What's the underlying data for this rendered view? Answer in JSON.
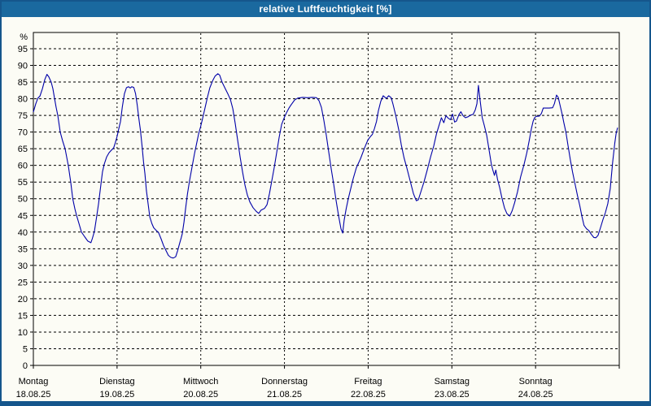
{
  "window": {
    "title": "relative Luftfeuchtigkeit [%]"
  },
  "colors": {
    "titlebar_bg": "#1a699f",
    "window_border": "#15568c",
    "content_bg": "#fcfcf5",
    "axis": "#000000",
    "line": "#0000a8"
  },
  "chart_data": {
    "type": "line",
    "title": "relative Luftfeuchtigkeit [%]",
    "ylabel": "%",
    "ylim": [
      0,
      100
    ],
    "grid": "dashed",
    "legend_position": "none",
    "y_axis": {
      "unit_label": "%",
      "yticks": [
        0,
        5,
        10,
        15,
        20,
        25,
        30,
        35,
        40,
        45,
        50,
        55,
        60,
        65,
        70,
        75,
        80,
        85,
        90,
        95
      ]
    },
    "x_axis": {
      "hours_total": 168,
      "day_boundary_hours": [
        0,
        24,
        48,
        72,
        96,
        120,
        144,
        168
      ],
      "days": [
        {
          "name": "Montag",
          "date": "18.08.25"
        },
        {
          "name": "Dienstag",
          "date": "19.08.25"
        },
        {
          "name": "Mittwoch",
          "date": "20.08.25"
        },
        {
          "name": "Donnerstag",
          "date": "21.08.25"
        },
        {
          "name": "Freitag",
          "date": "22.08.25"
        },
        {
          "name": "Samstag",
          "date": "23.08.25"
        },
        {
          "name": "Sonntag",
          "date": "24.08.25"
        }
      ]
    },
    "series": [
      {
        "name": "relative Luftfeuchtigkeit",
        "color": "#0000a8",
        "points": [
          [
            0,
            76
          ],
          [
            0.7,
            78.5
          ],
          [
            1.3,
            80.2
          ],
          [
            1.9,
            80.8
          ],
          [
            2.6,
            83
          ],
          [
            3.3,
            85.8
          ],
          [
            3.9,
            87.3
          ],
          [
            4.4,
            86.6
          ],
          [
            5.1,
            85
          ],
          [
            5.6,
            83
          ],
          [
            6.1,
            80
          ],
          [
            6.5,
            77.5
          ],
          [
            7,
            75
          ],
          [
            7.7,
            70
          ],
          [
            8.4,
            67.3
          ],
          [
            9.1,
            65
          ],
          [
            10,
            60
          ],
          [
            10.7,
            55
          ],
          [
            11.3,
            50
          ],
          [
            11.9,
            47
          ],
          [
            12.4,
            45
          ],
          [
            13.1,
            42.5
          ],
          [
            13.8,
            40
          ],
          [
            14.7,
            38.6
          ],
          [
            15.6,
            37.3
          ],
          [
            16.5,
            36.8
          ],
          [
            16.9,
            38
          ],
          [
            17.5,
            40.2
          ],
          [
            18.2,
            45
          ],
          [
            18.7,
            48.5
          ],
          [
            19.4,
            54.5
          ],
          [
            19.8,
            58
          ],
          [
            20.3,
            60.3
          ],
          [
            21,
            62.5
          ],
          [
            21.7,
            63.8
          ],
          [
            22.4,
            64.6
          ],
          [
            23,
            65.2
          ],
          [
            23.5,
            66.8
          ],
          [
            24,
            68.7
          ],
          [
            24.5,
            71
          ],
          [
            25,
            73.2
          ],
          [
            25.5,
            77.5
          ],
          [
            26.1,
            81.5
          ],
          [
            26.7,
            83.3
          ],
          [
            27.3,
            83.6
          ],
          [
            27.8,
            83.2
          ],
          [
            28.2,
            83.6
          ],
          [
            28.8,
            83.4
          ],
          [
            29.3,
            81.5
          ],
          [
            29.8,
            78
          ],
          [
            30.2,
            74.5
          ],
          [
            30.7,
            70.5
          ],
          [
            31.2,
            65.5
          ],
          [
            31.6,
            61
          ],
          [
            32,
            57.5
          ],
          [
            32.4,
            52.5
          ],
          [
            32.9,
            48.5
          ],
          [
            33.4,
            44.5
          ],
          [
            34,
            42.5
          ],
          [
            34.5,
            41.3
          ],
          [
            35.2,
            40.5
          ],
          [
            35.9,
            39.8
          ],
          [
            36.6,
            38
          ],
          [
            37.3,
            36
          ],
          [
            38,
            34.5
          ],
          [
            38.7,
            33
          ],
          [
            39.4,
            32.4
          ],
          [
            40.1,
            32.2
          ],
          [
            40.8,
            32.6
          ],
          [
            41.4,
            34.5
          ],
          [
            41.9,
            36.5
          ],
          [
            42.4,
            38.3
          ],
          [
            42.7,
            39.5
          ],
          [
            43.2,
            43
          ],
          [
            43.7,
            47.5
          ],
          [
            44.2,
            51.5
          ],
          [
            44.8,
            55.5
          ],
          [
            45.5,
            59.5
          ],
          [
            46.2,
            63.5
          ],
          [
            46.9,
            67
          ],
          [
            47.4,
            69.5
          ],
          [
            47.9,
            71.4
          ],
          [
            48.5,
            74
          ],
          [
            49.2,
            77.2
          ],
          [
            49.9,
            80.4
          ],
          [
            50.6,
            83.3
          ],
          [
            51.5,
            85.6
          ],
          [
            52.1,
            86.8
          ],
          [
            52.9,
            87.5
          ],
          [
            53.4,
            87.1
          ],
          [
            54.1,
            85
          ],
          [
            55.1,
            82.9
          ],
          [
            55.8,
            81.4
          ],
          [
            56.5,
            79.8
          ],
          [
            57.2,
            77
          ],
          [
            57.9,
            72.5
          ],
          [
            58.6,
            67.5
          ],
          [
            59.3,
            62.5
          ],
          [
            60,
            58
          ],
          [
            60.7,
            54
          ],
          [
            61.4,
            51
          ],
          [
            62.1,
            49
          ],
          [
            63,
            47.3
          ],
          [
            63.9,
            46.2
          ],
          [
            64.6,
            45.6
          ],
          [
            65.3,
            46.6
          ],
          [
            66.3,
            47.1
          ],
          [
            67,
            48.2
          ],
          [
            67.7,
            51.5
          ],
          [
            68.4,
            55.5
          ],
          [
            69.1,
            59.5
          ],
          [
            69.8,
            64
          ],
          [
            70.5,
            68.5
          ],
          [
            71.2,
            72.3
          ],
          [
            71.9,
            74.2
          ],
          [
            72.6,
            75.8
          ],
          [
            73.3,
            77.2
          ],
          [
            74,
            78.3
          ],
          [
            74.9,
            79.6
          ],
          [
            75.8,
            80.2
          ],
          [
            77.2,
            80.4
          ],
          [
            78.6,
            80.3
          ],
          [
            80,
            80.4
          ],
          [
            81.2,
            80.3
          ],
          [
            81.9,
            79.4
          ],
          [
            82.6,
            77.4
          ],
          [
            83.3,
            73.5
          ],
          [
            84,
            69
          ],
          [
            84.7,
            64
          ],
          [
            85.4,
            59
          ],
          [
            86.1,
            54.5
          ],
          [
            86.8,
            49.5
          ],
          [
            87.5,
            45
          ],
          [
            88.2,
            41
          ],
          [
            88.7,
            39.7
          ],
          [
            89.1,
            43.5
          ],
          [
            89.7,
            47
          ],
          [
            90.3,
            50
          ],
          [
            91,
            53
          ],
          [
            91.7,
            56
          ],
          [
            92.6,
            59.3
          ],
          [
            93.8,
            62
          ],
          [
            95,
            65.3
          ],
          [
            95.9,
            67.6
          ],
          [
            96.6,
            68.6
          ],
          [
            97.2,
            69.3
          ],
          [
            97.8,
            71
          ],
          [
            98.4,
            73.2
          ],
          [
            98.9,
            76.3
          ],
          [
            99.6,
            79.2
          ],
          [
            100.3,
            80.9
          ],
          [
            101.2,
            80.1
          ],
          [
            101.9,
            80.9
          ],
          [
            102.6,
            80.3
          ],
          [
            103.1,
            78.4
          ],
          [
            103.9,
            75
          ],
          [
            104.8,
            70.6
          ],
          [
            105.5,
            66.2
          ],
          [
            106.3,
            62.2
          ],
          [
            107.1,
            59.2
          ],
          [
            108,
            55.5
          ],
          [
            109,
            51.5
          ],
          [
            109.8,
            49.4
          ],
          [
            110.4,
            49.7
          ],
          [
            111.1,
            52
          ],
          [
            112,
            55
          ],
          [
            112.9,
            58.5
          ],
          [
            113.9,
            62.5
          ],
          [
            114.8,
            65.8
          ],
          [
            115.6,
            69.5
          ],
          [
            116.3,
            71.9
          ],
          [
            117,
            74.3
          ],
          [
            117.7,
            72.8
          ],
          [
            118.3,
            74.9
          ],
          [
            118.9,
            74.2
          ],
          [
            119.6,
            73.7
          ],
          [
            120.2,
            75.4
          ],
          [
            120.8,
            73
          ],
          [
            121.3,
            73.3
          ],
          [
            122,
            75.2
          ],
          [
            122.6,
            76.1
          ],
          [
            123.2,
            74.9
          ],
          [
            123.9,
            74.3
          ],
          [
            124.7,
            74.6
          ],
          [
            125.4,
            75.1
          ],
          [
            126.1,
            75.3
          ],
          [
            126.7,
            76.6
          ],
          [
            127.2,
            78.5
          ],
          [
            127.6,
            84
          ],
          [
            128.1,
            79.5
          ],
          [
            128.7,
            74.3
          ],
          [
            129.3,
            72
          ],
          [
            130,
            69
          ],
          [
            130.7,
            64.5
          ],
          [
            131.3,
            60.5
          ],
          [
            131.7,
            58.8
          ],
          [
            132.2,
            57
          ],
          [
            132.6,
            58.6
          ],
          [
            133.1,
            55.8
          ],
          [
            133.7,
            53.4
          ],
          [
            134.4,
            50
          ],
          [
            135.1,
            47.2
          ],
          [
            135.8,
            45.5
          ],
          [
            136.6,
            44.8
          ],
          [
            137.3,
            46.4
          ],
          [
            138,
            48.8
          ],
          [
            138.8,
            52
          ],
          [
            139.7,
            56.5
          ],
          [
            140.7,
            60.3
          ],
          [
            141.5,
            63.8
          ],
          [
            142.2,
            67.5
          ],
          [
            142.8,
            71
          ],
          [
            143.3,
            73.2
          ],
          [
            143.7,
            74.3
          ],
          [
            144.2,
            74.7
          ],
          [
            145.1,
            74.8
          ],
          [
            145.7,
            75.6
          ],
          [
            146.2,
            77.2
          ],
          [
            147,
            77.2
          ],
          [
            147.9,
            77.2
          ],
          [
            148.9,
            77.3
          ],
          [
            149.4,
            78.5
          ],
          [
            150,
            81.1
          ],
          [
            150.5,
            80.4
          ],
          [
            151,
            78.2
          ],
          [
            151.6,
            75.5
          ],
          [
            152.1,
            72.8
          ],
          [
            152.7,
            70
          ],
          [
            153.3,
            66
          ],
          [
            154,
            61.5
          ],
          [
            154.6,
            58
          ],
          [
            155.3,
            54.5
          ],
          [
            156,
            51
          ],
          [
            156.7,
            47.8
          ],
          [
            157.3,
            44.7
          ],
          [
            157.9,
            42
          ],
          [
            158.6,
            41
          ],
          [
            159.3,
            40.4
          ],
          [
            160,
            39.3
          ],
          [
            160.7,
            38.4
          ],
          [
            161.3,
            38.3
          ],
          [
            161.9,
            39
          ],
          [
            162.6,
            41.3
          ],
          [
            163.3,
            43.7
          ],
          [
            164,
            45.8
          ],
          [
            164.7,
            48.5
          ],
          [
            165.4,
            53
          ],
          [
            166.1,
            61
          ],
          [
            166.7,
            66.5
          ],
          [
            167.1,
            69.5
          ],
          [
            167.5,
            71.3
          ]
        ]
      }
    ]
  }
}
